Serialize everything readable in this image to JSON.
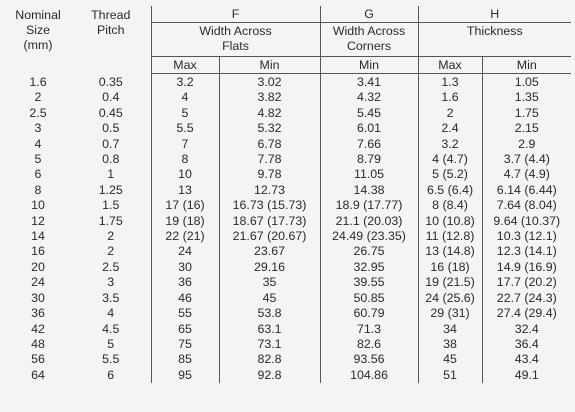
{
  "headers": {
    "nominal_size": [
      "Nominal",
      "Size",
      "(mm)"
    ],
    "thread_pitch": [
      "Thread",
      "Pitch"
    ],
    "group_f": {
      "letter": "F",
      "title": [
        "Width Across",
        "Flats"
      ]
    },
    "group_g": {
      "letter": "G",
      "title": [
        "Width Across",
        "Corners"
      ]
    },
    "group_h": {
      "letter": "H",
      "title": [
        "Thickness"
      ]
    },
    "max": "Max",
    "min": "Min"
  },
  "rows": [
    [
      "1.6",
      "0.35",
      "3.2",
      "3.02",
      "3.41",
      "1.3",
      "1.05"
    ],
    [
      "2",
      "0.4",
      "4",
      "3.82",
      "4.32",
      "1.6",
      "1.35"
    ],
    [
      "2.5",
      "0.45",
      "5",
      "4.82",
      "5.45",
      "2",
      "1.75"
    ],
    [
      "3",
      "0.5",
      "5.5",
      "5.32",
      "6.01",
      "2.4",
      "2.15"
    ],
    [
      "4",
      "0.7",
      "7",
      "6.78",
      "7.66",
      "3.2",
      "2.9"
    ],
    [
      "5",
      "0.8",
      "8",
      "7.78",
      "8.79",
      "4 (4.7)",
      "3.7 (4.4)"
    ],
    [
      "6",
      "1",
      "10",
      "9.78",
      "11.05",
      "5 (5.2)",
      "4.7 (4.9)"
    ],
    [
      "8",
      "1.25",
      "13",
      "12.73",
      "14.38",
      "6.5 (6.4)",
      "6.14 (6.44)"
    ],
    [
      "10",
      "1.5",
      "17 (16)",
      "16.73 (15.73)",
      "18.9 (17.77)",
      "8 (8.4)",
      "7.64 (8.04)"
    ],
    [
      "12",
      "1.75",
      "19 (18)",
      "18.67 (17.73)",
      "21.1 (20.03)",
      "10 (10.8)",
      "9.64 (10.37)"
    ],
    [
      "14",
      "2",
      "22 (21)",
      "21.67 (20.67)",
      "24.49 (23.35)",
      "11 (12.8)",
      "10.3 (12.1)"
    ],
    [
      "16",
      "2",
      "24",
      "23.67",
      "26.75",
      "13 (14.8)",
      "12.3 (14.1)"
    ],
    [
      "20",
      "2.5",
      "30",
      "29.16",
      "32.95",
      "16 (18)",
      "14.9 (16.9)"
    ],
    [
      "24",
      "3",
      "36",
      "35",
      "39.55",
      "19 (21.5)",
      "17.7 (20.2)"
    ],
    [
      "30",
      "3.5",
      "46",
      "45",
      "50.85",
      "24 (25.6)",
      "22.7 (24.3)"
    ],
    [
      "36",
      "4",
      "55",
      "53.8",
      "60.79",
      "29 (31)",
      "27.4 (29.4)"
    ],
    [
      "42",
      "4.5",
      "65",
      "63.1",
      "71.3",
      "34",
      "32.4"
    ],
    [
      "48",
      "5",
      "75",
      "73.1",
      "82.6",
      "38",
      "36.4"
    ],
    [
      "56",
      "5.5",
      "85",
      "82.8",
      "93.56",
      "45",
      "43.4"
    ],
    [
      "64",
      "6",
      "95",
      "92.8",
      "104.86",
      "51",
      "49.1"
    ]
  ]
}
